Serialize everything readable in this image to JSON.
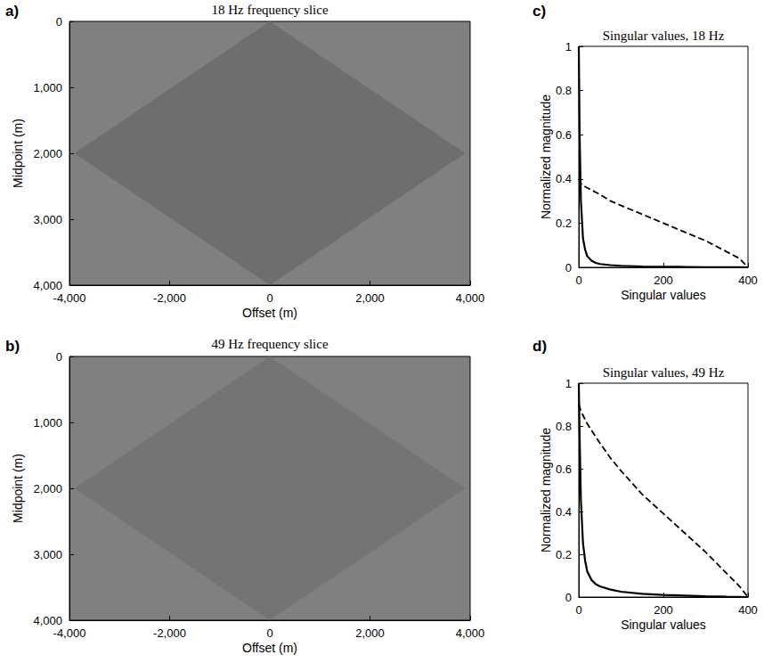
{
  "chart_data": [
    {
      "type": "image",
      "panel_label": "a)",
      "title": "18 Hz frequency slice",
      "x_label": "Offset (m)",
      "y_label": "Midpoint (m)",
      "xlim": [
        -4000,
        4000
      ],
      "xticks": [
        -4000,
        -2000,
        0,
        2000,
        4000
      ],
      "ylim": [
        4000,
        0
      ],
      "yticks": [
        0,
        1000,
        2000,
        3000,
        4000
      ],
      "region": [
        [
          -3900,
          2000
        ],
        [
          0,
          0
        ],
        [
          3900,
          2000
        ],
        [
          0,
          4000
        ]
      ],
      "color": "#6e6e6e",
      "grid": false
    },
    {
      "type": "image",
      "panel_label": "b)",
      "title": "49 Hz frequency slice",
      "x_label": "Offset (m)",
      "y_label": "Midpoint (m)",
      "xlim": [
        -4000,
        4000
      ],
      "xticks": [
        -4000,
        -2000,
        0,
        2000,
        4000
      ],
      "ylim": [
        4000,
        0
      ],
      "yticks": [
        0,
        1000,
        2000,
        3000,
        4000
      ],
      "region": [
        [
          -3900,
          2000
        ],
        [
          0,
          0
        ],
        [
          3900,
          2000
        ],
        [
          0,
          4000
        ]
      ],
      "color": "#747474",
      "grid": false
    },
    {
      "type": "line",
      "panel_label": "c)",
      "title": "Singular values, 18 Hz",
      "x_label": "Singular values",
      "y_label": "Normalized magnitude",
      "xlim": [
        0,
        400
      ],
      "xticks": [
        0,
        200,
        400
      ],
      "ylim": [
        0,
        1
      ],
      "yticks": [
        0,
        0.2,
        0.4,
        0.6,
        0.8,
        1
      ],
      "grid": false,
      "x": [
        0,
        2,
        5,
        10,
        15,
        20,
        30,
        40,
        50,
        75,
        100,
        150,
        200,
        250,
        300,
        350,
        380,
        400
      ],
      "series": [
        {
          "color": "#000000",
          "line_style": "solid",
          "values": [
            1,
            0.6,
            0.3,
            0.13,
            0.08,
            0.05,
            0.03,
            0.02,
            0.015,
            0.01,
            0.007,
            0.004,
            0.003,
            0.002,
            0.001,
            0.0005,
            0.0002,
            0
          ]
        },
        {
          "color": "#000000",
          "line_style": "dashed",
          "values": [
            0.4,
            0.39,
            0.38,
            0.37,
            0.365,
            0.36,
            0.35,
            0.34,
            0.33,
            0.3,
            0.28,
            0.24,
            0.2,
            0.16,
            0.12,
            0.07,
            0.04,
            0
          ]
        }
      ]
    },
    {
      "type": "line",
      "panel_label": "d)",
      "title": "Singular values, 49 Hz",
      "x_label": "Singular values",
      "y_label": "Normalized magnitude",
      "xlim": [
        0,
        400
      ],
      "xticks": [
        0,
        200,
        400
      ],
      "ylim": [
        0,
        1
      ],
      "yticks": [
        0,
        0.2,
        0.4,
        0.6,
        0.8,
        1
      ],
      "grid": false,
      "x": [
        0,
        2,
        5,
        10,
        15,
        20,
        30,
        40,
        50,
        75,
        100,
        150,
        200,
        250,
        300,
        350,
        380,
        400
      ],
      "series": [
        {
          "color": "#000000",
          "line_style": "solid",
          "values": [
            1,
            0.75,
            0.45,
            0.25,
            0.17,
            0.12,
            0.08,
            0.06,
            0.05,
            0.035,
            0.025,
            0.015,
            0.01,
            0.007,
            0.004,
            0.002,
            0.001,
            0
          ]
        },
        {
          "color": "#000000",
          "line_style": "dashed",
          "values": [
            0.9,
            0.89,
            0.87,
            0.85,
            0.83,
            0.81,
            0.78,
            0.75,
            0.72,
            0.65,
            0.59,
            0.48,
            0.39,
            0.3,
            0.21,
            0.11,
            0.05,
            0
          ]
        }
      ]
    }
  ]
}
